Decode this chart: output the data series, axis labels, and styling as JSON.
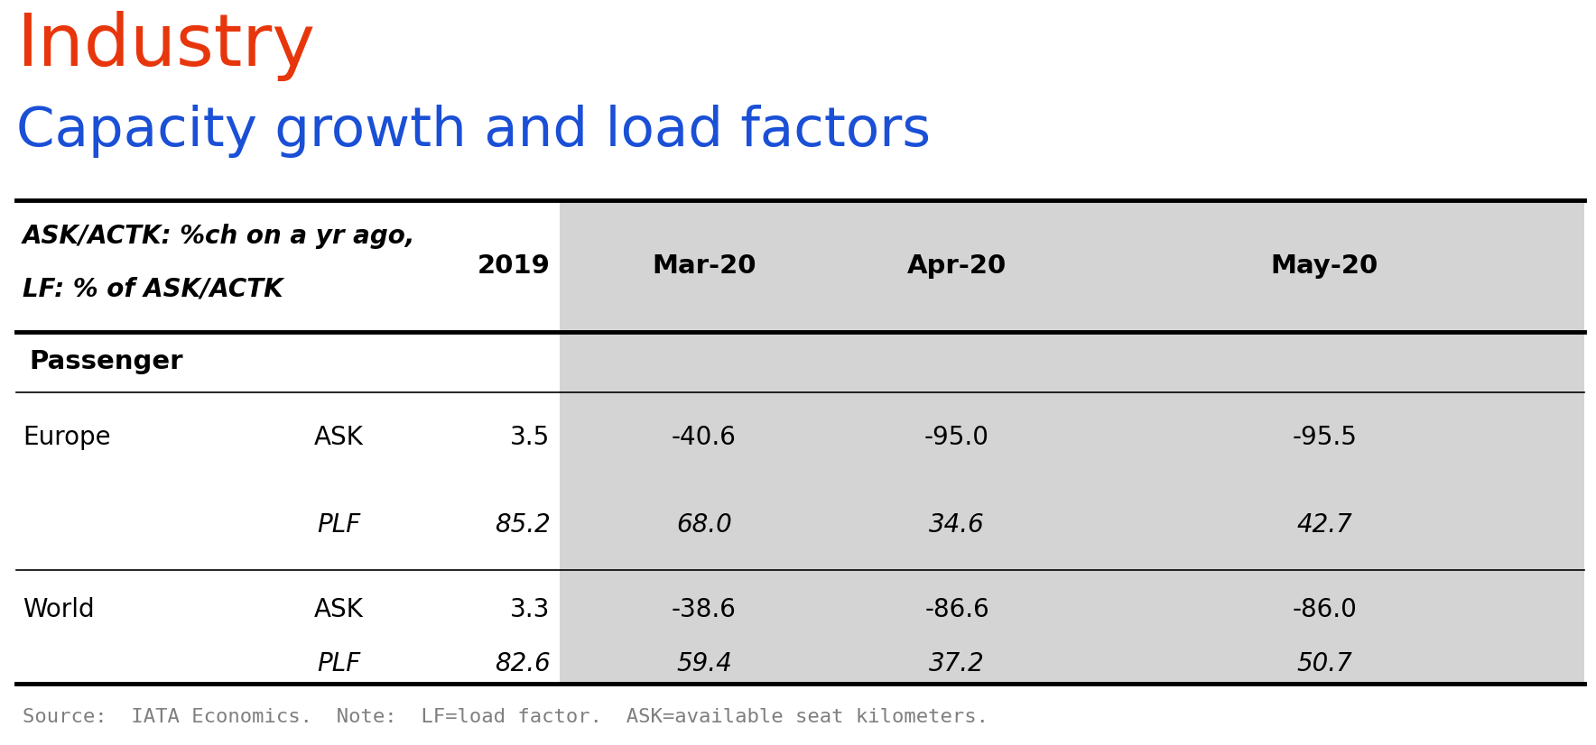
{
  "title1": "Industry",
  "title1_color": "#e8360c",
  "title2": "Capacity growth and load factors",
  "title2_color": "#1a4fd6",
  "col_headers": [
    "2019",
    "Mar-20",
    "Apr-20",
    "May-20"
  ],
  "section_label": "Passenger",
  "header_line1": "ASK/ACTK: %ch on a yr ago,",
  "header_line2": "LF: % of ASK/ACTK",
  "rows": [
    {
      "region": "Europe",
      "metric": "ASK",
      "italic": false,
      "values": [
        "3.5",
        "-40.6",
        "-95.0",
        "-95.5"
      ]
    },
    {
      "region": "",
      "metric": "PLF",
      "italic": true,
      "values": [
        "85.2",
        "68.0",
        "34.6",
        "42.7"
      ]
    },
    {
      "region": "World",
      "metric": "ASK",
      "italic": false,
      "values": [
        "3.3",
        "-38.6",
        "-86.6",
        "-86.0"
      ]
    },
    {
      "region": "",
      "metric": "PLF",
      "italic": true,
      "values": [
        "82.6",
        "59.4",
        "37.2",
        "50.7"
      ]
    }
  ],
  "footer": "Source:  IATA Economics.  Note:  LF=load factor.  ASK=available seat kilometers.",
  "shaded_color": "#d4d4d4",
  "white_color": "#ffffff",
  "bg_color": "#ffffff",
  "thick_line_color": "#000000",
  "thin_line_color": "#000000",
  "footer_color": "#7f7f7f"
}
